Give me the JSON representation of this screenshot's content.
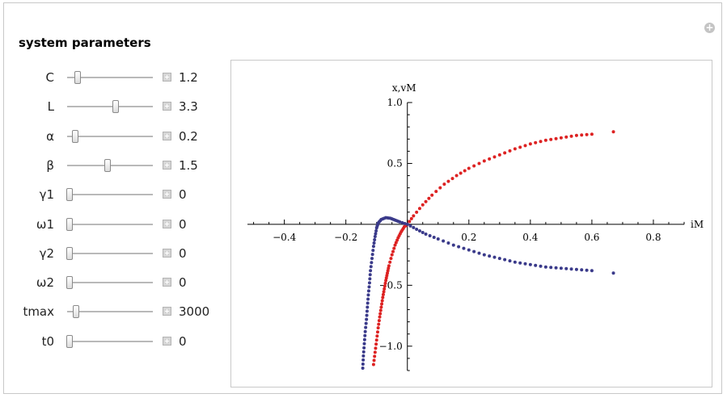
{
  "panel": {
    "title": "system parameters"
  },
  "params": [
    {
      "label": "C",
      "value": "1.2",
      "fraction": 0.12
    },
    {
      "label": "L",
      "value": "3.3",
      "fraction": 0.57
    },
    {
      "label": "α",
      "value": "0.2",
      "fraction": 0.09
    },
    {
      "label": "β",
      "value": "1.5",
      "fraction": 0.47
    },
    {
      "label": "γ1",
      "value": "0",
      "fraction": 0.03
    },
    {
      "label": "ω1",
      "value": "0",
      "fraction": 0.03
    },
    {
      "label": "γ2",
      "value": "0",
      "fraction": 0.03
    },
    {
      "label": "ω2",
      "value": "0",
      "fraction": 0.03
    },
    {
      "label": "tmax",
      "value": "3000",
      "fraction": 0.1
    },
    {
      "label": "t0",
      "value": "0",
      "fraction": 0.03
    }
  ],
  "chart_data": {
    "type": "scatter",
    "xlabel": "iM",
    "ylabel": "x,vM",
    "xlim": [
      -0.52,
      0.9
    ],
    "ylim": [
      -1.2,
      1.0
    ],
    "x_ticks": [
      {
        "value": -0.4,
        "label": "−0.4"
      },
      {
        "value": -0.2,
        "label": "−0.2"
      },
      {
        "value": 0.2,
        "label": "0.2"
      },
      {
        "value": 0.4,
        "label": "0.4"
      },
      {
        "value": 0.6,
        "label": "0.6"
      },
      {
        "value": 0.8,
        "label": "0.8"
      }
    ],
    "y_ticks": [
      {
        "value": -1.0,
        "label": "−1.0"
      },
      {
        "value": -0.5,
        "label": "−0.5"
      },
      {
        "value": 0.5,
        "label": "0.5"
      },
      {
        "value": 1.0,
        "label": "1.0"
      }
    ],
    "series": [
      {
        "color": "#dd2222",
        "points": [
          [
            -0.11,
            -1.15
          ],
          [
            -0.105,
            -1.05
          ],
          [
            -0.1,
            -0.95
          ],
          [
            -0.095,
            -0.85
          ],
          [
            -0.09,
            -0.76
          ],
          [
            -0.085,
            -0.68
          ],
          [
            -0.08,
            -0.6
          ],
          [
            -0.075,
            -0.53
          ],
          [
            -0.07,
            -0.46
          ],
          [
            -0.065,
            -0.4
          ],
          [
            -0.06,
            -0.34
          ],
          [
            -0.05,
            -0.25
          ],
          [
            -0.04,
            -0.17
          ],
          [
            -0.03,
            -0.11
          ],
          [
            -0.02,
            -0.06
          ],
          [
            -0.01,
            -0.02
          ],
          [
            0.0,
            0.0
          ],
          [
            0.02,
            0.07
          ],
          [
            0.05,
            0.16
          ],
          [
            0.08,
            0.24
          ],
          [
            0.12,
            0.33
          ],
          [
            0.16,
            0.4
          ],
          [
            0.2,
            0.46
          ],
          [
            0.25,
            0.52
          ],
          [
            0.3,
            0.57
          ],
          [
            0.35,
            0.62
          ],
          [
            0.4,
            0.66
          ],
          [
            0.45,
            0.69
          ],
          [
            0.5,
            0.71
          ],
          [
            0.55,
            0.73
          ],
          [
            0.6,
            0.74
          ],
          [
            0.67,
            0.76
          ]
        ]
      },
      {
        "color": "#3a3a8a",
        "points": [
          [
            -0.145,
            -1.18
          ],
          [
            -0.143,
            -1.08
          ],
          [
            -0.14,
            -0.98
          ],
          [
            -0.137,
            -0.88
          ],
          [
            -0.133,
            -0.78
          ],
          [
            -0.13,
            -0.68
          ],
          [
            -0.127,
            -0.58
          ],
          [
            -0.123,
            -0.48
          ],
          [
            -0.12,
            -0.38
          ],
          [
            -0.115,
            -0.28
          ],
          [
            -0.11,
            -0.18
          ],
          [
            -0.105,
            -0.1
          ],
          [
            -0.1,
            -0.03
          ],
          [
            -0.095,
            0.01
          ],
          [
            -0.085,
            0.04
          ],
          [
            -0.07,
            0.055
          ],
          [
            -0.055,
            0.05
          ],
          [
            -0.04,
            0.035
          ],
          [
            -0.025,
            0.02
          ],
          [
            0.0,
            0.0
          ],
          [
            0.03,
            -0.04
          ],
          [
            0.06,
            -0.08
          ],
          [
            0.1,
            -0.12
          ],
          [
            0.15,
            -0.17
          ],
          [
            0.2,
            -0.21
          ],
          [
            0.25,
            -0.25
          ],
          [
            0.3,
            -0.28
          ],
          [
            0.35,
            -0.31
          ],
          [
            0.4,
            -0.33
          ],
          [
            0.45,
            -0.35
          ],
          [
            0.5,
            -0.36
          ],
          [
            0.55,
            -0.37
          ],
          [
            0.6,
            -0.38
          ],
          [
            0.67,
            -0.4
          ]
        ]
      }
    ]
  }
}
